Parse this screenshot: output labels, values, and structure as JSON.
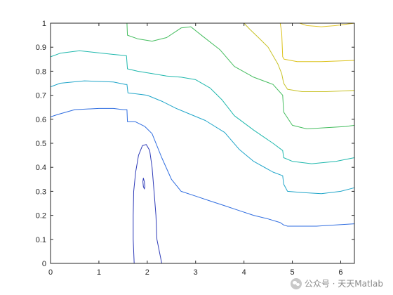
{
  "chart_data": {
    "type": "contour",
    "xlim": [
      0,
      6.2832
    ],
    "ylim": [
      0,
      1
    ],
    "grid": false,
    "box": true,
    "xticks": [
      0,
      1,
      2,
      3,
      4,
      5,
      6
    ],
    "yticks": [
      0,
      0.1,
      0.2,
      0.3,
      0.4,
      0.5,
      0.6,
      0.7,
      0.8,
      0.9,
      1
    ],
    "xtick_labels": [
      "0",
      "1",
      "2",
      "3",
      "4",
      "5",
      "6"
    ],
    "ytick_labels": [
      "0",
      "0.1",
      "0.2",
      "0.3",
      "0.4",
      "0.5",
      "0.6",
      "0.7",
      "0.8",
      "0.9",
      "1"
    ],
    "series": [
      {
        "color": "#2e3bb8",
        "closed": true,
        "points": [
          [
            1.73,
            0
          ],
          [
            1.71,
            0.1
          ],
          [
            1.71,
            0.2
          ],
          [
            1.72,
            0.3
          ],
          [
            1.76,
            0.38
          ],
          [
            1.82,
            0.45
          ],
          [
            1.9,
            0.49
          ],
          [
            1.98,
            0.495
          ],
          [
            2.05,
            0.47
          ],
          [
            2.1,
            0.4
          ],
          [
            2.14,
            0.3
          ],
          [
            2.18,
            0.2
          ],
          [
            2.2,
            0.1
          ],
          [
            2.3,
            0
          ]
        ]
      },
      {
        "color": "#2e3bb8",
        "closed": true,
        "points": [
          [
            1.92,
            0.355
          ],
          [
            1.94,
            0.34
          ],
          [
            1.95,
            0.32
          ],
          [
            1.94,
            0.31
          ],
          [
            1.92,
            0.32
          ],
          [
            1.91,
            0.34
          ]
        ]
      },
      {
        "color": "#2f6de0",
        "closed": false,
        "points": [
          [
            0,
            0.61
          ],
          [
            0.15,
            0.62
          ],
          [
            0.5,
            0.64
          ],
          [
            1.0,
            0.645
          ],
          [
            1.3,
            0.645
          ],
          [
            1.5,
            0.64
          ],
          [
            1.58,
            0.64
          ],
          [
            1.59,
            0.59
          ],
          [
            1.75,
            0.59
          ],
          [
            1.95,
            0.57
          ],
          [
            2.1,
            0.54
          ],
          [
            2.3,
            0.44
          ],
          [
            2.5,
            0.35
          ],
          [
            2.7,
            0.3
          ],
          [
            3.0,
            0.28
          ],
          [
            3.3,
            0.26
          ],
          [
            3.6,
            0.24
          ],
          [
            3.9,
            0.22
          ],
          [
            4.2,
            0.2
          ],
          [
            4.5,
            0.185
          ],
          [
            4.75,
            0.17
          ],
          [
            4.82,
            0.16
          ],
          [
            4.9,
            0.155
          ],
          [
            5.2,
            0.155
          ],
          [
            5.5,
            0.155
          ],
          [
            5.9,
            0.16
          ],
          [
            6.2832,
            0.165
          ]
        ]
      },
      {
        "color": "#1fa5c9",
        "closed": false,
        "points": [
          [
            0,
            0.735
          ],
          [
            0.2,
            0.75
          ],
          [
            0.7,
            0.76
          ],
          [
            1.3,
            0.755
          ],
          [
            1.55,
            0.745
          ],
          [
            1.58,
            0.745
          ],
          [
            1.6,
            0.71
          ],
          [
            1.8,
            0.705
          ],
          [
            2.0,
            0.7
          ],
          [
            2.3,
            0.675
          ],
          [
            2.6,
            0.645
          ],
          [
            2.9,
            0.62
          ],
          [
            3.2,
            0.595
          ],
          [
            3.6,
            0.545
          ],
          [
            3.9,
            0.475
          ],
          [
            4.2,
            0.425
          ],
          [
            4.6,
            0.38
          ],
          [
            4.8,
            0.365
          ],
          [
            4.82,
            0.33
          ],
          [
            4.9,
            0.3
          ],
          [
            5.2,
            0.295
          ],
          [
            5.6,
            0.29
          ],
          [
            6.0,
            0.3
          ],
          [
            6.2832,
            0.315
          ]
        ]
      },
      {
        "color": "#1fb8ad",
        "closed": false,
        "points": [
          [
            0,
            0.86
          ],
          [
            0.2,
            0.875
          ],
          [
            0.6,
            0.885
          ],
          [
            1.3,
            0.87
          ],
          [
            1.57,
            0.865
          ],
          [
            1.59,
            0.81
          ],
          [
            1.8,
            0.8
          ],
          [
            2.1,
            0.79
          ],
          [
            2.4,
            0.78
          ],
          [
            2.7,
            0.775
          ],
          [
            3.0,
            0.765
          ],
          [
            3.3,
            0.73
          ],
          [
            3.55,
            0.68
          ],
          [
            3.8,
            0.615
          ],
          [
            4.2,
            0.555
          ],
          [
            4.6,
            0.5
          ],
          [
            4.8,
            0.47
          ],
          [
            4.82,
            0.44
          ],
          [
            5.0,
            0.425
          ],
          [
            5.4,
            0.415
          ],
          [
            5.9,
            0.425
          ],
          [
            6.2832,
            0.44
          ]
        ]
      },
      {
        "color": "#44bd5e",
        "closed": false,
        "points": [
          [
            1.58,
            1
          ],
          [
            1.59,
            0.95
          ],
          [
            1.8,
            0.935
          ],
          [
            2.1,
            0.925
          ],
          [
            2.4,
            0.94
          ],
          [
            2.7,
            0.98
          ],
          [
            2.9,
            0.985
          ],
          [
            3.15,
            0.945
          ],
          [
            3.5,
            0.89
          ],
          [
            3.8,
            0.82
          ],
          [
            4.2,
            0.775
          ],
          [
            4.6,
            0.745
          ],
          [
            4.8,
            0.7
          ],
          [
            4.82,
            0.63
          ],
          [
            5.0,
            0.575
          ],
          [
            5.3,
            0.56
          ],
          [
            5.7,
            0.565
          ],
          [
            6.1,
            0.57
          ],
          [
            6.2832,
            0.575
          ]
        ]
      },
      {
        "color": "#c8c227",
        "closed": false,
        "points": [
          [
            4.0,
            1
          ],
          [
            4.12,
            0.975
          ],
          [
            4.3,
            0.94
          ],
          [
            4.5,
            0.9
          ],
          [
            4.7,
            0.83
          ],
          [
            4.78,
            0.79
          ],
          [
            4.82,
            0.75
          ],
          [
            4.9,
            0.725
          ],
          [
            5.2,
            0.715
          ],
          [
            5.7,
            0.715
          ],
          [
            6.2832,
            0.72
          ]
        ]
      },
      {
        "color": "#dcc21a",
        "closed": false,
        "points": [
          [
            4.75,
            1
          ],
          [
            4.78,
            0.96
          ],
          [
            4.8,
            0.86
          ],
          [
            4.83,
            0.85
          ],
          [
            5.1,
            0.84
          ],
          [
            5.6,
            0.84
          ],
          [
            6.2832,
            0.845
          ]
        ]
      },
      {
        "color": "#e3c72b",
        "closed": false,
        "points": [
          [
            5.15,
            1
          ],
          [
            5.3,
            0.99
          ],
          [
            5.6,
            0.985
          ],
          [
            5.9,
            0.99
          ],
          [
            6.2832,
            1
          ]
        ]
      }
    ]
  },
  "watermark": {
    "text": "公众号 · 天天Matlab"
  }
}
